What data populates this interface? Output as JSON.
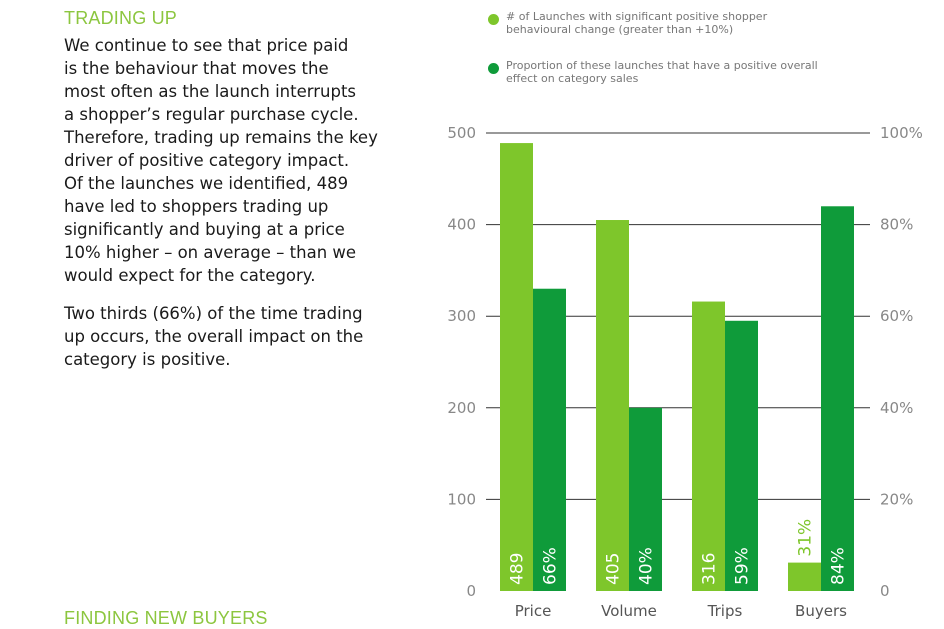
{
  "heading_top": "TRADING UP",
  "heading_bottom": "FINDING NEW BUYERS",
  "paragraph_1": "We continue to see that price paid\nis the behaviour that moves the\nmost often as the launch interrupts\na shopper’s regular purchase cycle.\nTherefore, trading up remains the key\ndriver of positive category impact.\nOf the launches we identified, 489\nhave led to shoppers trading up\nsignificantly and buying at a price\n10% higher – on average – than we\nwould expect for the category.",
  "paragraph_2": "Two thirds (66%) of the time trading\nup occurs, the overall impact on the\ncategory is positive.",
  "colors": {
    "light_green": "#7ec62b",
    "dark_green": "#0f9b3a",
    "heading_green": "#8cc63f",
    "axis_gray": "#888888",
    "grid": "#333333"
  },
  "chart_data": {
    "type": "bar",
    "categories": [
      "Price",
      "Volume",
      "Trips",
      "Buyers"
    ],
    "series": [
      {
        "name": "# of Launches with significant positive shopper behavioural change (greater than +10%)",
        "axis": "left",
        "values": [
          489,
          405,
          316,
          31
        ],
        "data_labels": [
          "489",
          "405",
          "316",
          "31%"
        ]
      },
      {
        "name": "Proportion of these launches that have a positive overall effect on category sales",
        "axis": "right",
        "values": [
          66,
          40,
          59,
          84
        ],
        "data_labels": [
          "66%",
          "40%",
          "59%",
          "84%"
        ]
      }
    ],
    "y_left": {
      "ticks": [
        "0",
        "100",
        "200",
        "300",
        "400",
        "500"
      ],
      "range": [
        0,
        500
      ]
    },
    "y_right": {
      "ticks": [
        "0",
        "20%",
        "40%",
        "60%",
        "80%",
        "100%"
      ],
      "range": [
        0,
        100
      ]
    },
    "grid": true,
    "legend_position": "top"
  }
}
